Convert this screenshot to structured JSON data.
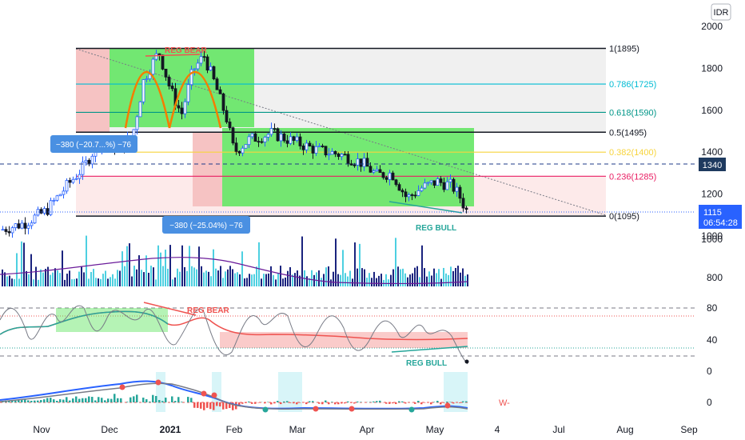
{
  "chart_data": {
    "type": "candlestick",
    "currency": "IDR",
    "ylim": [
      1000,
      2050
    ],
    "y_ticks": [
      "2000",
      "1800",
      "1600",
      "1400",
      "1200",
      "1000"
    ],
    "x_ticks": [
      "Nov",
      "Dec",
      "2021",
      "Feb",
      "Mar",
      "Apr",
      "May",
      "4",
      "Jul",
      "Aug",
      "Sep"
    ],
    "last_price": "1115",
    "countdown": "06:54:28",
    "marker_price": "1340",
    "fib_levels": [
      {
        "label": "1(1895)",
        "value": 1895,
        "color": "#131722"
      },
      {
        "label": "0.786(1725)",
        "value": 1725,
        "color": "#00bcd4"
      },
      {
        "label": "0.618(1590)",
        "value": 1590,
        "color": "#009688"
      },
      {
        "label": "0.5(1495)",
        "value": 1495,
        "color": "#131722"
      },
      {
        "label": "0.382(1400)",
        "value": 1400,
        "color": "#f7d43c"
      },
      {
        "label": "0.236(1285)",
        "value": 1285,
        "color": "#e91e63"
      },
      {
        "label": "0(1095)",
        "value": 1095,
        "color": "#131722"
      }
    ],
    "price_series": [
      {
        "m": 0.0,
        "c": 1030
      },
      {
        "m": 0.3,
        "c": 1060
      },
      {
        "m": 0.6,
        "c": 1120
      },
      {
        "m": 0.9,
        "c": 1250
      },
      {
        "m": 1.1,
        "c": 1330
      },
      {
        "m": 1.3,
        "c": 1450
      },
      {
        "m": 1.6,
        "c": 1420
      },
      {
        "m": 1.75,
        "c": 1480
      },
      {
        "m": 1.9,
        "c": 1750
      },
      {
        "m": 2.1,
        "c": 1880
      },
      {
        "m": 2.25,
        "c": 1700
      },
      {
        "m": 2.4,
        "c": 1580
      },
      {
        "m": 2.55,
        "c": 1790
      },
      {
        "m": 2.7,
        "c": 1860
      },
      {
        "m": 2.85,
        "c": 1720
      },
      {
        "m": 3.0,
        "c": 1560
      },
      {
        "m": 3.1,
        "c": 1400
      },
      {
        "m": 3.3,
        "c": 1460
      },
      {
        "m": 3.6,
        "c": 1490
      },
      {
        "m": 3.9,
        "c": 1450
      },
      {
        "m": 4.2,
        "c": 1410
      },
      {
        "m": 4.5,
        "c": 1390
      },
      {
        "m": 4.8,
        "c": 1350
      },
      {
        "m": 5.0,
        "c": 1290
      },
      {
        "m": 5.2,
        "c": 1300
      },
      {
        "m": 5.4,
        "c": 1180
      },
      {
        "m": 5.6,
        "c": 1230
      },
      {
        "m": 5.8,
        "c": 1260
      },
      {
        "m": 6.0,
        "c": 1240
      },
      {
        "m": 6.1,
        "c": 1190
      },
      {
        "m": 6.2,
        "c": 1115
      }
    ],
    "volume_ticks": [
      "1000",
      "800"
    ],
    "rsi_ticks": [
      "80",
      "40",
      "0"
    ],
    "rsi_levels": [
      80,
      70,
      30,
      20
    ],
    "macd_ticks": [
      "0"
    ],
    "labels": {
      "reg_bear_price": "REG BEAR",
      "reg_bull_price": "REG BULL",
      "reg_bear_osc": "REG BEAR",
      "reg_bull_osc": "REG BULL",
      "range_label_1": "−380 (−20.7...%) −76",
      "range_label_2": "−380 (−25.04%) −76",
      "w_label": "W-"
    }
  },
  "colors": {
    "up": "#26a69a",
    "down": "#ef5350",
    "accent_blue": "#2962ff",
    "green_box": "#4cd964",
    "red_box": "#f4a6a6"
  }
}
